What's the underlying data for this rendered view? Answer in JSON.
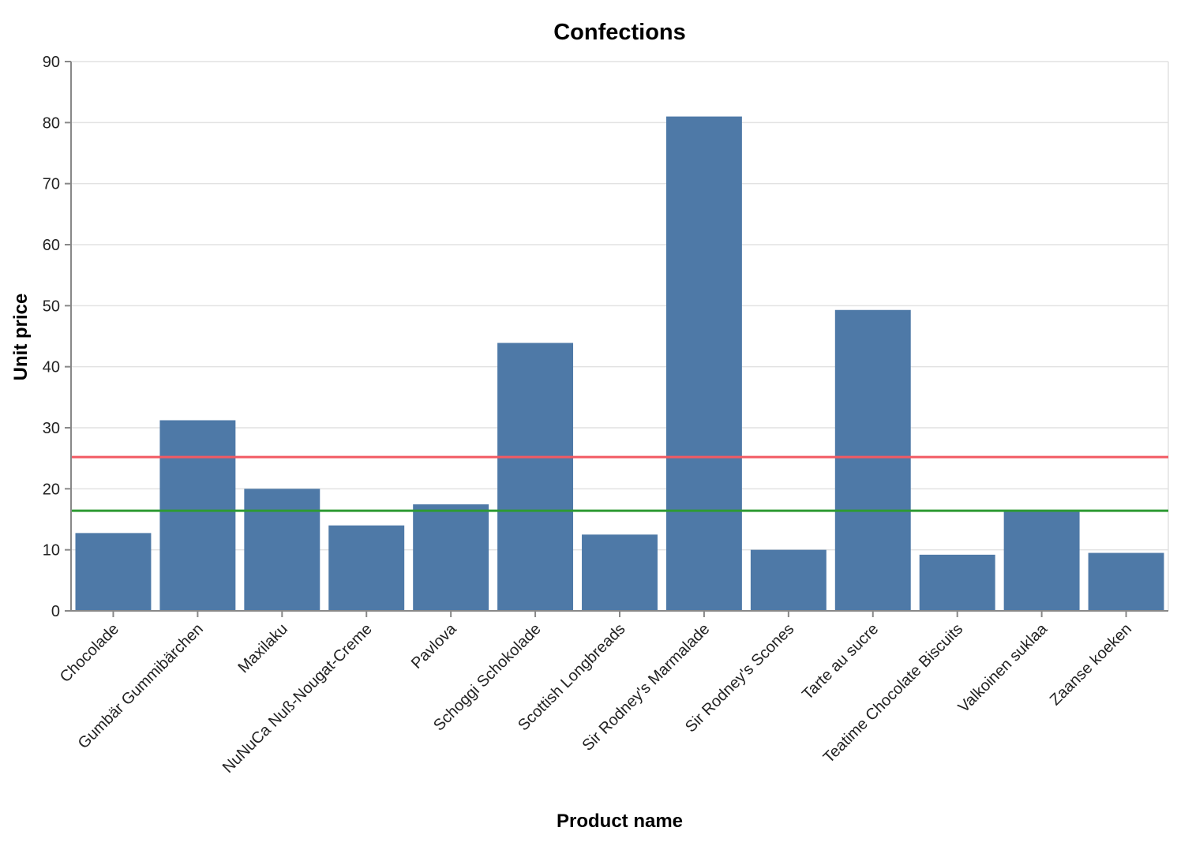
{
  "chart_data": {
    "type": "bar",
    "title": "Confections",
    "xlabel": "Product name",
    "ylabel": "Unit price",
    "ylim": [
      0,
      90
    ],
    "yticks": [
      0,
      10,
      20,
      30,
      40,
      50,
      60,
      70,
      80,
      90
    ],
    "grid": true,
    "categories": [
      "Chocolade",
      "Gumbär Gummibärchen",
      "Maxilaku",
      "NuNuCa Nuß-Nougat-Creme",
      "Pavlova",
      "Schoggi Schokolade",
      "Scottish Longbreads",
      "Sir Rodney's Marmalade",
      "Sir Rodney's Scones",
      "Tarte au sucre",
      "Teatime Chocolate Biscuits",
      "Valkoinen suklaa",
      "Zaanse koeken"
    ],
    "values": [
      12.75,
      31.23,
      20,
      14,
      17.45,
      43.9,
      12.5,
      81,
      10,
      49.3,
      9.2,
      16.25,
      9.5
    ],
    "reference_lines": [
      {
        "value": 25.2,
        "color": "#f25a63"
      },
      {
        "value": 16.4,
        "color": "#2e9a33"
      }
    ],
    "bar_color": "#4e79a7"
  }
}
